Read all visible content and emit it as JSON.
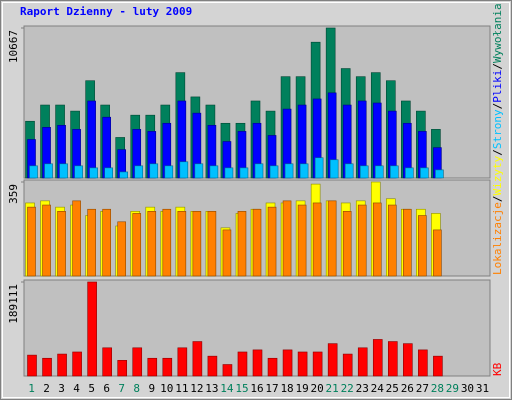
{
  "chart_data": {
    "type": "bar",
    "title": "Raport Dzienny -  luty 2009",
    "separator": "/",
    "categories": [
      "1",
      "2",
      "3",
      "4",
      "5",
      "6",
      "7",
      "8",
      "9",
      "10",
      "11",
      "12",
      "13",
      "14",
      "15",
      "16",
      "17",
      "18",
      "19",
      "20",
      "21",
      "22",
      "23",
      "24",
      "25",
      "26",
      "27",
      "28",
      "29",
      "30",
      "31"
    ],
    "category_colors": [
      "#00805c",
      "#000000",
      "#000000",
      "#000000",
      "#000000",
      "#000000",
      "#00805c",
      "#00805c",
      "#000000",
      "#000000",
      "#000000",
      "#000000",
      "#000000",
      "#00805c",
      "#00805c",
      "#000000",
      "#000000",
      "#000000",
      "#000000",
      "#000000",
      "#00805c",
      "#00805c",
      "#000000",
      "#000000",
      "#000000",
      "#000000",
      "#000000",
      "#00805c",
      "#00805c",
      "#000000",
      "#000000"
    ],
    "panels": [
      {
        "ylim": [
          0,
          10667
        ],
        "yticks": [
          10667
        ],
        "series": [
          {
            "name": "Wywołania",
            "color": "#00805c",
            "values": [
              4036,
              5189,
              5189,
              4757,
              6919,
              5189,
              2883,
              4468,
              4468,
              5189,
              7495,
              5766,
              5189,
              3892,
              3892,
              5477,
              4757,
              7207,
              7207,
              9658,
              10667,
              7784,
              7207,
              7495,
              6919,
              5477,
              4757,
              3459,
              null,
              null,
              null
            ]
          },
          {
            "name": "Pliki",
            "color": "#0000ff",
            "values": [
              2739,
              3604,
              3748,
              3459,
              5477,
              4324,
              2018,
              3459,
              3315,
              3892,
              5477,
              4612,
              3748,
              2595,
              3315,
              3892,
              3027,
              4901,
              5189,
              5621,
              6054,
              5189,
              5477,
              5333,
              4757,
              3892,
              3315,
              2162,
              null,
              null,
              null
            ]
          },
          {
            "name": "Strony",
            "color": "#00c0ff",
            "values": [
              865,
              1009,
              1009,
              865,
              721,
              721,
              432,
              865,
              1009,
              865,
              1153,
              1009,
              865,
              721,
              721,
              1009,
              865,
              1009,
              1009,
              1441,
              1297,
              1009,
              865,
              865,
              865,
              721,
              721,
              577,
              null,
              null,
              null
            ]
          }
        ]
      },
      {
        "ylim": [
          0,
          359
        ],
        "yticks": [
          359
        ],
        "series": [
          {
            "name": "Wizyty",
            "color": "#ffff00",
            "values": [
              279,
              287,
              263,
              271,
              231,
              247,
              191,
              247,
              263,
              247,
              263,
              247,
              247,
              184,
              239,
              255,
              279,
              279,
              287,
              351,
              287,
              279,
              287,
              359,
              295,
              255,
              255,
              239,
              null,
              null,
              null
            ]
          },
          {
            "name": "Lokalizacje",
            "color": "#ff8000",
            "values": [
              263,
              271,
              247,
              287,
              255,
              255,
              207,
              239,
              247,
              255,
              247,
              247,
              247,
              176,
              247,
              255,
              263,
              287,
              271,
              279,
              287,
              247,
              271,
              279,
              271,
              255,
              231,
              176,
              null,
              null,
              null
            ]
          }
        ]
      },
      {
        "ylim": [
          0,
          189111
        ],
        "yticks": [
          189111
        ],
        "series": [
          {
            "name": "KB",
            "color": "#ff0000",
            "values": [
              42022,
              35717,
              44121,
              48323,
              189111,
              56727,
              31515,
              56727,
              35717,
              35717,
              56727,
              69333,
              39919,
              23111,
              48323,
              52525,
              35717,
              52525,
              48323,
              48323,
              65131,
              44121,
              56727,
              73535,
              69333,
              65131,
              52525,
              39919,
              null,
              null,
              null
            ]
          }
        ]
      }
    ]
  }
}
